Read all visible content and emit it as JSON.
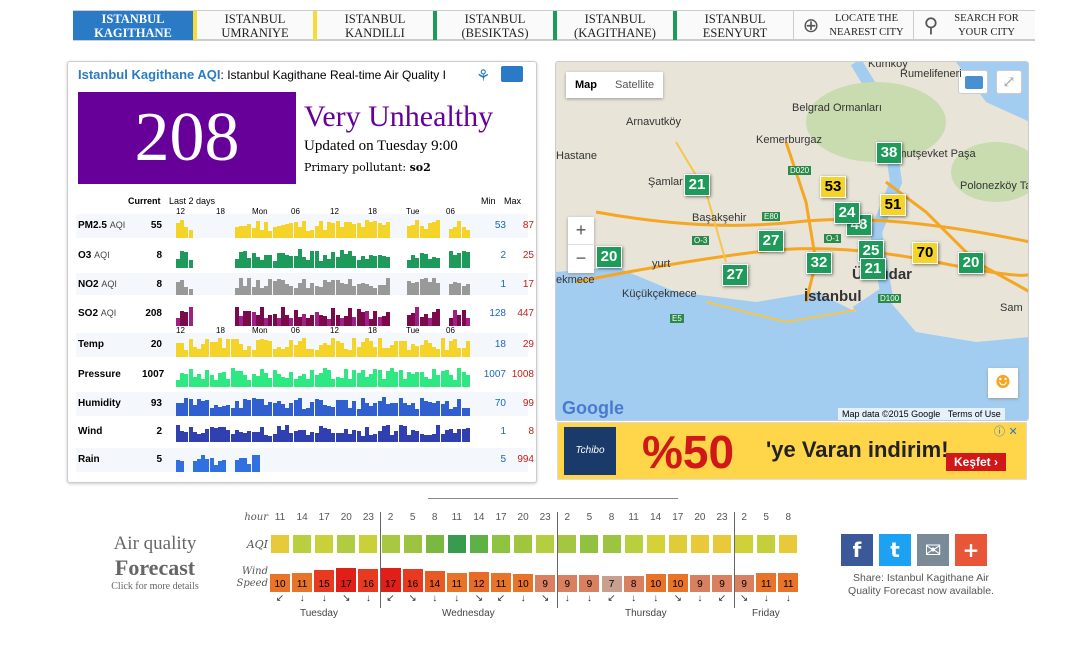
{
  "tabs": [
    {
      "l1": "ISTANBUL",
      "l2": "KAGITHANE"
    },
    {
      "l1": "ISTANBUL",
      "l2": "UMRANIYE"
    },
    {
      "l1": "ISTANBUL",
      "l2": "KANDILLI"
    },
    {
      "l1": "ISTANBUL",
      "l2": "(BESIKTAS)"
    },
    {
      "l1": "ISTANBUL",
      "l2": "(KAGITHANE)"
    },
    {
      "l1": "ISTANBUL",
      "l2": "ESENYURT"
    }
  ],
  "tools": {
    "locate_l1": "LOCATE THE",
    "locate_l2": "NEAREST CITY",
    "search_l1": "SEARCH FOR",
    "search_l2": "YOUR CITY"
  },
  "panel": {
    "title": "Istanbul Kagithane AQI",
    "subtitle": ": Istanbul Kagithane Real-time Air Quality I",
    "aqi": "208",
    "level": "Very Unhealthy",
    "updated": "Updated on Tuesday 9:00",
    "pollutant_label": "Primary pollutant: ",
    "pollutant": "so2",
    "current_label": "Current",
    "last_label": "Last 2 days",
    "min_label": "Min",
    "max_label": "Max",
    "ticks": [
      "12",
      "18",
      "Mon",
      "06",
      "12",
      "18",
      "Tue",
      "06"
    ],
    "ticks2": [
      "12",
      "18",
      "Mon",
      "06",
      "12",
      "18",
      "Tue",
      "06"
    ]
  },
  "rows": [
    {
      "name": "PM2.5",
      "aqi": "AQI",
      "cur": "55",
      "min": "53",
      "max": "87",
      "color": "#f5d42a"
    },
    {
      "name": "O3",
      "aqi": "AQI",
      "cur": "8",
      "min": "2",
      "max": "25",
      "color": "#1e9a5a"
    },
    {
      "name": "NO2",
      "aqi": "AQI",
      "cur": "8",
      "min": "1",
      "max": "17",
      "color": "#999999"
    },
    {
      "name": "SO2",
      "aqi": "AQI",
      "cur": "208",
      "min": "128",
      "max": "447",
      "color": "#7a0a4a"
    },
    {
      "name": "Temp",
      "aqi": "",
      "cur": "20",
      "min": "18",
      "max": "29",
      "color": "#f5d42a"
    },
    {
      "name": "Pressure",
      "aqi": "",
      "cur": "1007",
      "min": "1007",
      "max": "1008",
      "color": "#2ee882"
    },
    {
      "name": "Humidity",
      "aqi": "",
      "cur": "93",
      "min": "70",
      "max": "99",
      "color": "#3060d0"
    },
    {
      "name": "Wind",
      "aqi": "",
      "cur": "2",
      "min": "1",
      "max": "8",
      "color": "#3040b0"
    },
    {
      "name": "Rain",
      "aqi": "",
      "cur": "5",
      "min": "5",
      "max": "994",
      "color": "#3070e0"
    }
  ],
  "map": {
    "map_btn": "Map",
    "sat_btn": "Satellite",
    "zoom_in": "+",
    "zoom_out": "−",
    "attribution": "Map data ©2015 Google",
    "terms": "Terms of Use",
    "google": "Google",
    "places": [
      "Arnavutköy",
      "Kemerburgaz",
      "Mahmutşevket Paşa",
      "Hastane",
      "Şamlar",
      "Başakşehir",
      "Küçükçekmece",
      "İstanbul",
      "Üsküdar",
      "Rumelifeneri",
      "Polonezköy Tabiat Park",
      "Belgrad Ormanları",
      "ekmece",
      "yurt",
      "Kumköy",
      "Sam"
    ],
    "pins": [
      {
        "v": "38",
        "c": "g"
      },
      {
        "v": "21",
        "c": "g"
      },
      {
        "v": "53",
        "c": "y"
      },
      {
        "v": "51",
        "c": "y"
      },
      {
        "v": "48",
        "c": "g"
      },
      {
        "v": "27",
        "c": "g"
      },
      {
        "v": "25",
        "c": "g"
      },
      {
        "v": "70",
        "c": "y"
      },
      {
        "v": "20",
        "c": "g"
      },
      {
        "v": "32",
        "c": "g"
      },
      {
        "v": "27",
        "c": "g"
      },
      {
        "v": "20",
        "c": "g"
      },
      {
        "v": "24",
        "c": "g"
      },
      {
        "v": "21",
        "c": "g"
      }
    ],
    "roads": [
      "D020",
      "E80",
      "O-3",
      "D100",
      "E5",
      "O-1"
    ]
  },
  "ad": {
    "brand": "Tchibo",
    "pct": "%50",
    "text": "'ye Varan indirim!",
    "button": "Keşfet ›"
  },
  "forecast": {
    "title1": "Air quality",
    "title2": "Forecast",
    "hint": "Click for more details",
    "hour_label": "hour",
    "aqi_label": "AQI",
    "wind_label1": "Wind",
    "wind_label2": "Speed",
    "hours": [
      "11",
      "14",
      "17",
      "20",
      "23",
      "2",
      "5",
      "8",
      "11",
      "14",
      "17",
      "20",
      "23",
      "2",
      "5",
      "8",
      "11",
      "14",
      "17",
      "20",
      "23",
      "2",
      "5",
      "8"
    ],
    "aqi_colors": [
      "#e8c93a",
      "#b8d040",
      "#c8d238",
      "#b0cc40",
      "#c8d238",
      "#a8c840",
      "#9cc440",
      "#7ab840",
      "#3a9a50",
      "#60b048",
      "#8ec440",
      "#a0c640",
      "#b4ce40",
      "#a4c640",
      "#90c240",
      "#9cc440",
      "#b8d040",
      "#d4d236",
      "#e0cc38",
      "#e8c93a",
      "#e8c93a",
      "#d0d038",
      "#c4d03a",
      "#e8c93a"
    ],
    "wind": [
      "10",
      "11",
      "15",
      "17",
      "16",
      "17",
      "16",
      "14",
      "11",
      "12",
      "11",
      "10",
      "9",
      "9",
      "9",
      "7",
      "8",
      "10",
      "10",
      "9",
      "9",
      "9",
      "11",
      "11"
    ],
    "wind_colors": [
      "#e8742a",
      "#e8742a",
      "#e83a20",
      "#e02018",
      "#e83a20",
      "#e02018",
      "#e83a20",
      "#e85a24",
      "#e8742a",
      "#e86a26",
      "#e8742a",
      "#e8742a",
      "#d88060",
      "#d88060",
      "#d88060",
      "#c8a090",
      "#d88060",
      "#e8742a",
      "#e8742a",
      "#d88060",
      "#d88060",
      "#d88060",
      "#e8742a",
      "#e8742a"
    ],
    "days": [
      "Tuesday",
      "Wednesday",
      "Thursday",
      "Friday"
    ],
    "share": "Share: Istanbul Kagithane Air Quality Forecast now available."
  },
  "social": {
    "fb": "f",
    "tw": "t",
    "mail": "✉",
    "plus": "+",
    "fb_color": "#3b5998",
    "tw_color": "#1da1f2",
    "mail_color": "#7a8a99",
    "plus_color": "#e8563a"
  }
}
